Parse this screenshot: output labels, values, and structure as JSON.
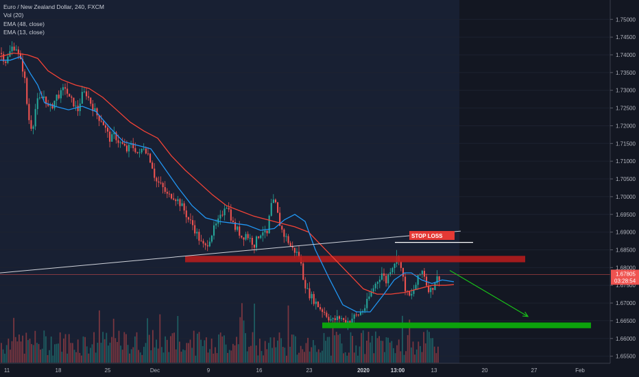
{
  "legend": {
    "symbol": "Euro / New Zealand Dollar, 240, FXCM",
    "vol": "Vol (20)",
    "ema48": "EMA (48, close)",
    "ema13": "EMA (13, close)"
  },
  "price_tag": {
    "price": "1.67805",
    "timer": "03:28:54"
  },
  "stop_loss": "STOP LOSS",
  "colors": {
    "background": "#131722",
    "up": "#26a69a",
    "down": "#ef5350",
    "ema48": "#f44336",
    "ema13": "#2196f3",
    "zone_resistance": "#b71c1c",
    "zone_support": "#0ca20c",
    "arrow": "#19c219",
    "price_line": "#ef5350"
  },
  "chart_data": {
    "type": "candlestick",
    "ylim": [
      1.653,
      1.7545
    ],
    "y_ticks": [
      "1.75000",
      "1.74500",
      "1.74000",
      "1.73500",
      "1.73000",
      "1.72500",
      "1.72000",
      "1.71500",
      "1.71000",
      "1.70500",
      "1.70000",
      "1.69500",
      "1.69000",
      "1.68500",
      "1.68000",
      "1.67500",
      "1.67000",
      "1.66500",
      "1.66000",
      "1.65500"
    ],
    "x_ticks": [
      "11",
      "18",
      "25",
      "Dec",
      "9",
      "16",
      "23",
      "2020",
      "13:00",
      "13",
      "20",
      "27",
      "Feb"
    ],
    "price_path": [
      [
        0,
        1.7405
      ],
      [
        8,
        1.738
      ],
      [
        16,
        1.742
      ],
      [
        22,
        1.7425
      ],
      [
        28,
        1.7385
      ],
      [
        34,
        1.735
      ],
      [
        40,
        1.7225
      ],
      [
        46,
        1.719
      ],
      [
        52,
        1.7265
      ],
      [
        58,
        1.7275
      ],
      [
        64,
        1.7285
      ],
      [
        70,
        1.7245
      ],
      [
        76,
        1.726
      ],
      [
        82,
        1.7285
      ],
      [
        88,
        1.729
      ],
      [
        94,
        1.731
      ],
      [
        100,
        1.7275
      ],
      [
        106,
        1.7265
      ],
      [
        112,
        1.724
      ],
      [
        118,
        1.7285
      ],
      [
        124,
        1.7295
      ],
      [
        130,
        1.727
      ],
      [
        136,
        1.7245
      ],
      [
        142,
        1.7225
      ],
      [
        148,
        1.7215
      ],
      [
        154,
        1.7185
      ],
      [
        160,
        1.716
      ],
      [
        166,
        1.7175
      ],
      [
        172,
        1.7155
      ],
      [
        178,
        1.7145
      ],
      [
        184,
        1.713
      ],
      [
        190,
        1.7145
      ],
      [
        196,
        1.7135
      ],
      [
        202,
        1.7115
      ],
      [
        208,
        1.7145
      ],
      [
        214,
        1.7125
      ],
      [
        220,
        1.7095
      ],
      [
        226,
        1.7045
      ],
      [
        232,
        1.7035
      ],
      [
        238,
        1.702
      ],
      [
        244,
        1.7
      ],
      [
        250,
        1.7005
      ],
      [
        256,
        1.6995
      ],
      [
        262,
        1.698
      ],
      [
        268,
        1.696
      ],
      [
        274,
        1.6935
      ],
      [
        280,
        1.692
      ],
      [
        286,
        1.6895
      ],
      [
        292,
        1.687
      ],
      [
        298,
        1.6855
      ],
      [
        304,
        1.688
      ],
      [
        310,
        1.6905
      ],
      [
        316,
        1.6925
      ],
      [
        322,
        1.6945
      ],
      [
        328,
        1.6985
      ],
      [
        334,
        1.6955
      ],
      [
        340,
        1.6915
      ],
      [
        346,
        1.6905
      ],
      [
        352,
        1.6885
      ],
      [
        358,
        1.6895
      ],
      [
        364,
        1.688
      ],
      [
        370,
        1.6865
      ],
      [
        376,
        1.689
      ],
      [
        382,
        1.6905
      ],
      [
        388,
        1.6885
      ],
      [
        394,
        1.6975
      ],
      [
        400,
        1.6985
      ],
      [
        406,
        1.693
      ],
      [
        412,
        1.6895
      ],
      [
        418,
        1.688
      ],
      [
        424,
        1.6855
      ],
      [
        430,
        1.6845
      ],
      [
        436,
        1.683
      ],
      [
        442,
        1.6765
      ],
      [
        448,
        1.673
      ],
      [
        454,
        1.6715
      ],
      [
        460,
        1.67
      ],
      [
        466,
        1.6685
      ],
      [
        472,
        1.6675
      ],
      [
        478,
        1.666
      ],
      [
        484,
        1.665
      ],
      [
        490,
        1.6655
      ],
      [
        496,
        1.666
      ],
      [
        502,
        1.6645
      ],
      [
        508,
        1.665
      ],
      [
        514,
        1.666
      ],
      [
        520,
        1.6665
      ],
      [
        526,
        1.6675
      ],
      [
        532,
        1.669
      ],
      [
        538,
        1.672
      ],
      [
        544,
        1.6745
      ],
      [
        550,
        1.6765
      ],
      [
        556,
        1.6785
      ],
      [
        562,
        1.676
      ],
      [
        568,
        1.6795
      ],
      [
        574,
        1.6815
      ],
      [
        580,
        1.6835
      ],
      [
        586,
        1.6775
      ],
      [
        592,
        1.6725
      ],
      [
        598,
        1.6715
      ],
      [
        604,
        1.6745
      ],
      [
        610,
        1.6775
      ],
      [
        616,
        1.6795
      ],
      [
        622,
        1.6745
      ],
      [
        628,
        1.6735
      ],
      [
        634,
        1.6765
      ],
      [
        640,
        1.6775
      ]
    ],
    "ema48": [
      [
        0,
        1.7395
      ],
      [
        20,
        1.7405
      ],
      [
        40,
        1.74
      ],
      [
        55,
        1.739
      ],
      [
        70,
        1.7355
      ],
      [
        90,
        1.733
      ],
      [
        110,
        1.7315
      ],
      [
        130,
        1.7305
      ],
      [
        150,
        1.728
      ],
      [
        170,
        1.7245
      ],
      [
        190,
        1.721
      ],
      [
        210,
        1.7185
      ],
      [
        230,
        1.7165
      ],
      [
        250,
        1.7115
      ],
      [
        270,
        1.7075
      ],
      [
        290,
        1.704
      ],
      [
        310,
        1.7005
      ],
      [
        330,
        1.6975
      ],
      [
        350,
        1.696
      ],
      [
        370,
        1.6945
      ],
      [
        390,
        1.6935
      ],
      [
        410,
        1.6925
      ],
      [
        430,
        1.6915
      ],
      [
        450,
        1.69
      ],
      [
        470,
        1.686
      ],
      [
        490,
        1.682
      ],
      [
        510,
        1.678
      ],
      [
        530,
        1.674
      ],
      [
        550,
        1.6725
      ],
      [
        570,
        1.6725
      ],
      [
        590,
        1.673
      ],
      [
        610,
        1.674
      ],
      [
        630,
        1.675
      ],
      [
        650,
        1.675
      ],
      [
        662,
        1.6752
      ]
    ],
    "ema13": [
      [
        0,
        1.7385
      ],
      [
        15,
        1.7385
      ],
      [
        30,
        1.7395
      ],
      [
        45,
        1.7345
      ],
      [
        55,
        1.7315
      ],
      [
        65,
        1.7265
      ],
      [
        80,
        1.7255
      ],
      [
        100,
        1.7245
      ],
      [
        120,
        1.7255
      ],
      [
        140,
        1.724
      ],
      [
        160,
        1.7195
      ],
      [
        180,
        1.7155
      ],
      [
        200,
        1.7145
      ],
      [
        220,
        1.7135
      ],
      [
        240,
        1.708
      ],
      [
        260,
        1.7025
      ],
      [
        280,
        1.6975
      ],
      [
        300,
        1.694
      ],
      [
        320,
        1.693
      ],
      [
        340,
        1.6925
      ],
      [
        360,
        1.692
      ],
      [
        380,
        1.6905
      ],
      [
        400,
        1.691
      ],
      [
        415,
        1.6935
      ],
      [
        430,
        1.695
      ],
      [
        445,
        1.693
      ],
      [
        460,
        1.685
      ],
      [
        480,
        1.677
      ],
      [
        500,
        1.6695
      ],
      [
        520,
        1.6675
      ],
      [
        540,
        1.6675
      ],
      [
        560,
        1.6725
      ],
      [
        575,
        1.6765
      ],
      [
        590,
        1.6785
      ],
      [
        600,
        1.6785
      ],
      [
        615,
        1.6765
      ],
      [
        630,
        1.6755
      ],
      [
        645,
        1.6765
      ],
      [
        662,
        1.676
      ]
    ],
    "resistance_zone": {
      "x": [
        270,
        766
      ],
      "y": [
        1.6815,
        1.6833
      ]
    },
    "support_zone": {
      "x": [
        470,
        862
      ],
      "y": [
        1.6629,
        1.6645
      ]
    },
    "trendline": [
      [
        0,
        1.6785
      ],
      [
        672,
        1.6903
      ]
    ],
    "stop_level": {
      "x": [
        576,
        690
      ],
      "y": 1.6871
    },
    "current_price": 1.67805,
    "projection_arrow": [
      [
        656,
        1.6792
      ],
      [
        770,
        1.6662
      ]
    ]
  }
}
